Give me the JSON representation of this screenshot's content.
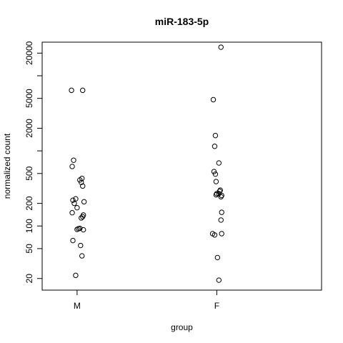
{
  "chart_data": {
    "type": "scatter",
    "title": "miR-183-5p",
    "xlabel": "group",
    "ylabel": "normalized count",
    "y_scale": "log",
    "ylim": [
      14,
      28000
    ],
    "y_ticks": [
      20,
      50,
      100,
      200,
      500,
      2000,
      5000,
      20000
    ],
    "y_tick_labels": [
      "20",
      "50",
      "100",
      "200",
      "500",
      "2000",
      "5000",
      "20000"
    ],
    "y_minor_ticks": [
      1000,
      10000
    ],
    "categories": [
      "M",
      "F"
    ],
    "grid": false,
    "legend": "none",
    "series": [
      {
        "category": "M",
        "points": [
          {
            "jitter": -0.08,
            "y": 6400
          },
          {
            "jitter": 0.08,
            "y": 6400
          },
          {
            "jitter": -0.05,
            "y": 750
          },
          {
            "jitter": -0.07,
            "y": 620
          },
          {
            "jitter": 0.07,
            "y": 430
          },
          {
            "jitter": 0.04,
            "y": 410
          },
          {
            "jitter": 0.06,
            "y": 380
          },
          {
            "jitter": 0.08,
            "y": 340
          },
          {
            "jitter": -0.02,
            "y": 230
          },
          {
            "jitter": -0.06,
            "y": 220
          },
          {
            "jitter": 0.1,
            "y": 210
          },
          {
            "jitter": -0.04,
            "y": 200
          },
          {
            "jitter": 0.0,
            "y": 175
          },
          {
            "jitter": -0.07,
            "y": 150
          },
          {
            "jitter": 0.09,
            "y": 140
          },
          {
            "jitter": 0.08,
            "y": 133
          },
          {
            "jitter": 0.06,
            "y": 128
          },
          {
            "jitter": 0.02,
            "y": 92
          },
          {
            "jitter": 0.0,
            "y": 90
          },
          {
            "jitter": 0.04,
            "y": 93
          },
          {
            "jitter": 0.09,
            "y": 89
          },
          {
            "jitter": -0.06,
            "y": 64
          },
          {
            "jitter": 0.05,
            "y": 55
          },
          {
            "jitter": 0.07,
            "y": 40
          },
          {
            "jitter": -0.02,
            "y": 22
          }
        ]
      },
      {
        "category": "F",
        "points": [
          {
            "jitter": 0.06,
            "y": 24000
          },
          {
            "jitter": -0.05,
            "y": 4800
          },
          {
            "jitter": -0.02,
            "y": 1600
          },
          {
            "jitter": -0.03,
            "y": 1150
          },
          {
            "jitter": 0.03,
            "y": 690
          },
          {
            "jitter": -0.04,
            "y": 530
          },
          {
            "jitter": -0.02,
            "y": 490
          },
          {
            "jitter": -0.01,
            "y": 390
          },
          {
            "jitter": 0.05,
            "y": 300
          },
          {
            "jitter": 0.04,
            "y": 290
          },
          {
            "jitter": 0.0,
            "y": 270
          },
          {
            "jitter": -0.01,
            "y": 260
          },
          {
            "jitter": 0.07,
            "y": 255
          },
          {
            "jitter": 0.06,
            "y": 245
          },
          {
            "jitter": 0.03,
            "y": 270
          },
          {
            "jitter": 0.07,
            "y": 152
          },
          {
            "jitter": 0.06,
            "y": 120
          },
          {
            "jitter": -0.06,
            "y": 79
          },
          {
            "jitter": -0.03,
            "y": 76
          },
          {
            "jitter": 0.07,
            "y": 79
          },
          {
            "jitter": 0.01,
            "y": 38
          },
          {
            "jitter": 0.03,
            "y": 19
          }
        ]
      }
    ]
  }
}
